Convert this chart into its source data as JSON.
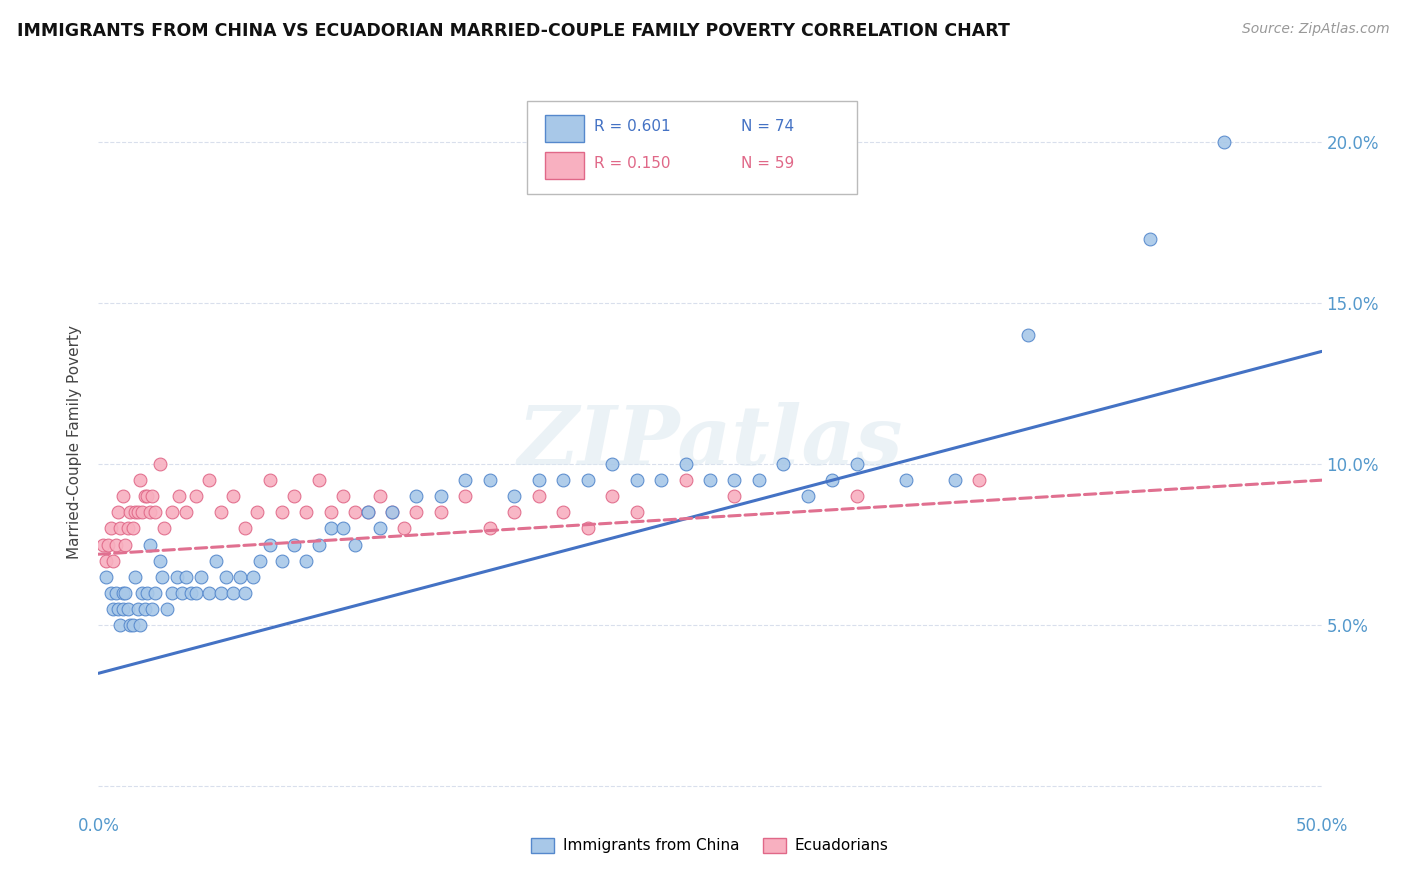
{
  "title": "IMMIGRANTS FROM CHINA VS ECUADORIAN MARRIED-COUPLE FAMILY POVERTY CORRELATION CHART",
  "source": "Source: ZipAtlas.com",
  "ylabel": "Married-Couple Family Poverty",
  "xlim": [
    0.0,
    0.5
  ],
  "ylim": [
    -0.008,
    0.222
  ],
  "color_china": "#a8c8e8",
  "color_china_edge": "#5588cc",
  "color_ecuador": "#f8b0c0",
  "color_ecuador_edge": "#e06888",
  "color_china_line": "#4472c4",
  "color_ecuador_line": "#e07090",
  "watermark": "ZIPatlas",
  "china_x": [
    0.003,
    0.005,
    0.006,
    0.007,
    0.008,
    0.009,
    0.01,
    0.01,
    0.011,
    0.012,
    0.013,
    0.014,
    0.015,
    0.016,
    0.017,
    0.018,
    0.019,
    0.02,
    0.021,
    0.022,
    0.023,
    0.025,
    0.026,
    0.028,
    0.03,
    0.032,
    0.034,
    0.036,
    0.038,
    0.04,
    0.042,
    0.045,
    0.048,
    0.05,
    0.052,
    0.055,
    0.058,
    0.06,
    0.063,
    0.066,
    0.07,
    0.075,
    0.08,
    0.085,
    0.09,
    0.095,
    0.1,
    0.105,
    0.11,
    0.115,
    0.12,
    0.13,
    0.14,
    0.15,
    0.16,
    0.17,
    0.18,
    0.19,
    0.2,
    0.21,
    0.22,
    0.23,
    0.24,
    0.25,
    0.26,
    0.27,
    0.28,
    0.29,
    0.3,
    0.31,
    0.33,
    0.35,
    0.38,
    0.43,
    0.46
  ],
  "china_y": [
    0.065,
    0.06,
    0.055,
    0.06,
    0.055,
    0.05,
    0.06,
    0.055,
    0.06,
    0.055,
    0.05,
    0.05,
    0.065,
    0.055,
    0.05,
    0.06,
    0.055,
    0.06,
    0.075,
    0.055,
    0.06,
    0.07,
    0.065,
    0.055,
    0.06,
    0.065,
    0.06,
    0.065,
    0.06,
    0.06,
    0.065,
    0.06,
    0.07,
    0.06,
    0.065,
    0.06,
    0.065,
    0.06,
    0.065,
    0.07,
    0.075,
    0.07,
    0.075,
    0.07,
    0.075,
    0.08,
    0.08,
    0.075,
    0.085,
    0.08,
    0.085,
    0.09,
    0.09,
    0.095,
    0.095,
    0.09,
    0.095,
    0.095,
    0.095,
    0.1,
    0.095,
    0.095,
    0.1,
    0.095,
    0.095,
    0.095,
    0.1,
    0.09,
    0.095,
    0.1,
    0.095,
    0.095,
    0.14,
    0.17,
    0.2
  ],
  "ecuador_x": [
    0.002,
    0.003,
    0.004,
    0.005,
    0.006,
    0.007,
    0.008,
    0.009,
    0.01,
    0.011,
    0.012,
    0.013,
    0.014,
    0.015,
    0.016,
    0.017,
    0.018,
    0.019,
    0.02,
    0.021,
    0.022,
    0.023,
    0.025,
    0.027,
    0.03,
    0.033,
    0.036,
    0.04,
    0.045,
    0.05,
    0.055,
    0.06,
    0.065,
    0.07,
    0.075,
    0.08,
    0.085,
    0.09,
    0.095,
    0.1,
    0.105,
    0.11,
    0.115,
    0.12,
    0.125,
    0.13,
    0.14,
    0.15,
    0.16,
    0.17,
    0.18,
    0.19,
    0.2,
    0.21,
    0.22,
    0.24,
    0.26,
    0.31,
    0.36
  ],
  "ecuador_y": [
    0.075,
    0.07,
    0.075,
    0.08,
    0.07,
    0.075,
    0.085,
    0.08,
    0.09,
    0.075,
    0.08,
    0.085,
    0.08,
    0.085,
    0.085,
    0.095,
    0.085,
    0.09,
    0.09,
    0.085,
    0.09,
    0.085,
    0.1,
    0.08,
    0.085,
    0.09,
    0.085,
    0.09,
    0.095,
    0.085,
    0.09,
    0.08,
    0.085,
    0.095,
    0.085,
    0.09,
    0.085,
    0.095,
    0.085,
    0.09,
    0.085,
    0.085,
    0.09,
    0.085,
    0.08,
    0.085,
    0.085,
    0.09,
    0.08,
    0.085,
    0.09,
    0.085,
    0.08,
    0.09,
    0.085,
    0.095,
    0.09,
    0.09,
    0.095
  ],
  "china_line_x0": 0.0,
  "china_line_x1": 0.5,
  "china_line_y0": 0.035,
  "china_line_y1": 0.135,
  "ecuador_line_x0": 0.0,
  "ecuador_line_x1": 0.5,
  "ecuador_line_y0": 0.072,
  "ecuador_line_y1": 0.095
}
